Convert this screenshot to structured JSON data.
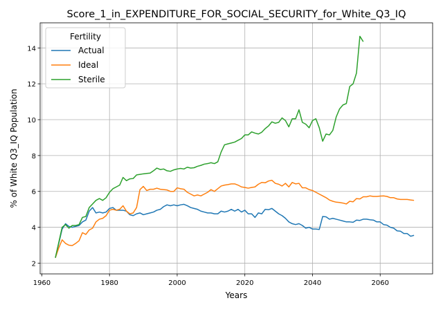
{
  "chart_data": {
    "type": "line",
    "title": "Score_1_in_EXPENDITURE_FOR_SOCIAL_SECURITY_for_White_Q3_IQ",
    "xlabel": "Years",
    "ylabel": "% of White Q3_IQ Population",
    "xlim": [
      1959.5,
      2075.5
    ],
    "ylim": [
      1.4,
      15.4
    ],
    "xticks": [
      1960,
      1980,
      2000,
      2020,
      2040,
      2060
    ],
    "yticks": [
      2,
      4,
      6,
      8,
      10,
      12,
      14
    ],
    "grid": true,
    "legend": {
      "title": "Fertility",
      "placement": "top-left"
    },
    "series": [
      {
        "name": "Actual",
        "color": "#1f77b4",
        "points": [
          [
            1964,
            2.3
          ],
          [
            1966,
            3.9
          ],
          [
            1967,
            4.2
          ],
          [
            1968,
            4.05
          ],
          [
            1969,
            4.0
          ],
          [
            1970,
            4.05
          ],
          [
            1971,
            4.1
          ],
          [
            1972,
            4.3
          ],
          [
            1973,
            4.4
          ],
          [
            1974,
            4.9
          ],
          [
            1975,
            5.1
          ],
          [
            1976,
            4.8
          ],
          [
            1977,
            4.85
          ],
          [
            1978,
            4.8
          ],
          [
            1979,
            4.85
          ],
          [
            1980,
            5.05
          ],
          [
            1981,
            5.1
          ],
          [
            1982,
            4.95
          ],
          [
            1983,
            4.95
          ],
          [
            1984,
            4.95
          ],
          [
            1985,
            4.9
          ],
          [
            1986,
            4.7
          ],
          [
            1987,
            4.65
          ],
          [
            1988,
            4.75
          ],
          [
            1989,
            4.8
          ],
          [
            1990,
            4.7
          ],
          [
            1991,
            4.75
          ],
          [
            1992,
            4.8
          ],
          [
            1993,
            4.85
          ],
          [
            1994,
            4.95
          ],
          [
            1995,
            5.0
          ],
          [
            1996,
            5.15
          ],
          [
            1997,
            5.25
          ],
          [
            1998,
            5.2
          ],
          [
            1999,
            5.25
          ],
          [
            2000,
            5.2
          ],
          [
            2001,
            5.25
          ],
          [
            2002,
            5.28
          ],
          [
            2003,
            5.2
          ],
          [
            2004,
            5.1
          ],
          [
            2005,
            5.05
          ],
          [
            2006,
            5.0
          ],
          [
            2007,
            4.9
          ],
          [
            2008,
            4.85
          ],
          [
            2009,
            4.8
          ],
          [
            2010,
            4.8
          ],
          [
            2011,
            4.75
          ],
          [
            2012,
            4.75
          ],
          [
            2013,
            4.9
          ],
          [
            2014,
            4.85
          ],
          [
            2015,
            4.9
          ],
          [
            2016,
            5.0
          ],
          [
            2017,
            4.9
          ],
          [
            2018,
            5.0
          ],
          [
            2019,
            4.85
          ],
          [
            2020,
            4.95
          ],
          [
            2021,
            4.75
          ],
          [
            2022,
            4.75
          ],
          [
            2023,
            4.55
          ],
          [
            2024,
            4.8
          ],
          [
            2025,
            4.75
          ],
          [
            2026,
            5.0
          ],
          [
            2027,
            4.98
          ],
          [
            2028,
            5.05
          ],
          [
            2029,
            4.9
          ],
          [
            2030,
            4.75
          ],
          [
            2031,
            4.65
          ],
          [
            2032,
            4.5
          ],
          [
            2033,
            4.3
          ],
          [
            2034,
            4.2
          ],
          [
            2035,
            4.15
          ],
          [
            2036,
            4.2
          ],
          [
            2037,
            4.1
          ],
          [
            2038,
            3.95
          ],
          [
            2039,
            4.0
          ],
          [
            2040,
            3.9
          ],
          [
            2041,
            3.9
          ],
          [
            2042,
            3.88
          ],
          [
            2043,
            4.6
          ],
          [
            2044,
            4.58
          ],
          [
            2045,
            4.45
          ],
          [
            2046,
            4.5
          ],
          [
            2047,
            4.45
          ],
          [
            2048,
            4.4
          ],
          [
            2049,
            4.35
          ],
          [
            2050,
            4.3
          ],
          [
            2051,
            4.3
          ],
          [
            2052,
            4.28
          ],
          [
            2053,
            4.4
          ],
          [
            2054,
            4.38
          ],
          [
            2055,
            4.45
          ],
          [
            2056,
            4.45
          ],
          [
            2057,
            4.42
          ],
          [
            2058,
            4.4
          ],
          [
            2059,
            4.3
          ],
          [
            2060,
            4.3
          ],
          [
            2061,
            4.15
          ],
          [
            2062,
            4.12
          ],
          [
            2063,
            4.0
          ],
          [
            2064,
            3.95
          ],
          [
            2065,
            3.8
          ],
          [
            2066,
            3.78
          ],
          [
            2067,
            3.65
          ],
          [
            2068,
            3.65
          ],
          [
            2069,
            3.5
          ],
          [
            2070,
            3.55
          ]
        ]
      },
      {
        "name": "Ideal",
        "color": "#ff7f0e",
        "points": [
          [
            1964,
            2.3
          ],
          [
            1965,
            2.85
          ],
          [
            1966,
            3.3
          ],
          [
            1967,
            3.1
          ],
          [
            1968,
            3.0
          ],
          [
            1969,
            2.98
          ],
          [
            1970,
            3.1
          ],
          [
            1971,
            3.25
          ],
          [
            1972,
            3.7
          ],
          [
            1973,
            3.6
          ],
          [
            1974,
            3.85
          ],
          [
            1975,
            3.95
          ],
          [
            1976,
            4.3
          ],
          [
            1977,
            4.45
          ],
          [
            1978,
            4.5
          ],
          [
            1979,
            4.65
          ],
          [
            1980,
            4.95
          ],
          [
            1981,
            5.0
          ],
          [
            1982,
            4.95
          ],
          [
            1983,
            5.0
          ],
          [
            1984,
            5.2
          ],
          [
            1985,
            4.9
          ],
          [
            1986,
            4.75
          ],
          [
            1987,
            4.8
          ],
          [
            1988,
            5.1
          ],
          [
            1989,
            6.1
          ],
          [
            1990,
            6.28
          ],
          [
            1991,
            6.05
          ],
          [
            1992,
            6.12
          ],
          [
            1993,
            6.12
          ],
          [
            1994,
            6.18
          ],
          [
            1995,
            6.12
          ],
          [
            1996,
            6.1
          ],
          [
            1997,
            6.08
          ],
          [
            1998,
            6.0
          ],
          [
            1999,
            6.0
          ],
          [
            2000,
            6.2
          ],
          [
            2001,
            6.15
          ],
          [
            2002,
            6.12
          ],
          [
            2003,
            5.95
          ],
          [
            2004,
            5.85
          ],
          [
            2005,
            5.75
          ],
          [
            2006,
            5.8
          ],
          [
            2007,
            5.75
          ],
          [
            2008,
            5.85
          ],
          [
            2009,
            5.95
          ],
          [
            2010,
            6.1
          ],
          [
            2011,
            6.0
          ],
          [
            2012,
            6.15
          ],
          [
            2013,
            6.3
          ],
          [
            2014,
            6.35
          ],
          [
            2015,
            6.38
          ],
          [
            2016,
            6.42
          ],
          [
            2017,
            6.42
          ],
          [
            2018,
            6.35
          ],
          [
            2019,
            6.25
          ],
          [
            2020,
            6.22
          ],
          [
            2021,
            6.18
          ],
          [
            2022,
            6.22
          ],
          [
            2023,
            6.25
          ],
          [
            2024,
            6.4
          ],
          [
            2025,
            6.5
          ],
          [
            2026,
            6.48
          ],
          [
            2027,
            6.58
          ],
          [
            2028,
            6.62
          ],
          [
            2029,
            6.45
          ],
          [
            2030,
            6.4
          ],
          [
            2031,
            6.3
          ],
          [
            2032,
            6.45
          ],
          [
            2033,
            6.25
          ],
          [
            2034,
            6.5
          ],
          [
            2035,
            6.42
          ],
          [
            2036,
            6.45
          ],
          [
            2037,
            6.2
          ],
          [
            2038,
            6.2
          ],
          [
            2039,
            6.1
          ],
          [
            2040,
            6.05
          ],
          [
            2041,
            5.95
          ],
          [
            2042,
            5.85
          ],
          [
            2043,
            5.75
          ],
          [
            2044,
            5.65
          ],
          [
            2045,
            5.52
          ],
          [
            2046,
            5.45
          ],
          [
            2047,
            5.4
          ],
          [
            2048,
            5.38
          ],
          [
            2049,
            5.35
          ],
          [
            2050,
            5.3
          ],
          [
            2051,
            5.45
          ],
          [
            2052,
            5.42
          ],
          [
            2053,
            5.6
          ],
          [
            2054,
            5.58
          ],
          [
            2055,
            5.7
          ],
          [
            2056,
            5.7
          ],
          [
            2057,
            5.75
          ],
          [
            2058,
            5.72
          ],
          [
            2059,
            5.72
          ],
          [
            2060,
            5.74
          ],
          [
            2061,
            5.75
          ],
          [
            2062,
            5.72
          ],
          [
            2063,
            5.65
          ],
          [
            2064,
            5.65
          ],
          [
            2065,
            5.58
          ],
          [
            2066,
            5.55
          ],
          [
            2067,
            5.55
          ],
          [
            2068,
            5.55
          ],
          [
            2069,
            5.52
          ],
          [
            2070,
            5.5
          ]
        ]
      },
      {
        "name": "Sterile",
        "color": "#2ca02c",
        "points": [
          [
            1964,
            2.3
          ],
          [
            1966,
            4.0
          ],
          [
            1967,
            4.15
          ],
          [
            1968,
            3.95
          ],
          [
            1969,
            4.1
          ],
          [
            1970,
            4.1
          ],
          [
            1971,
            4.15
          ],
          [
            1972,
            4.55
          ],
          [
            1973,
            4.6
          ],
          [
            1974,
            5.1
          ],
          [
            1975,
            5.3
          ],
          [
            1976,
            5.5
          ],
          [
            1977,
            5.6
          ],
          [
            1978,
            5.5
          ],
          [
            1979,
            5.65
          ],
          [
            1980,
            5.95
          ],
          [
            1981,
            6.15
          ],
          [
            1982,
            6.25
          ],
          [
            1983,
            6.35
          ],
          [
            1984,
            6.78
          ],
          [
            1985,
            6.6
          ],
          [
            1986,
            6.7
          ],
          [
            1987,
            6.72
          ],
          [
            1988,
            6.92
          ],
          [
            1989,
            6.95
          ],
          [
            1990,
            6.98
          ],
          [
            1991,
            7.0
          ],
          [
            1992,
            7.02
          ],
          [
            1993,
            7.15
          ],
          [
            1994,
            7.3
          ],
          [
            1995,
            7.22
          ],
          [
            1996,
            7.25
          ],
          [
            1997,
            7.15
          ],
          [
            1998,
            7.12
          ],
          [
            1999,
            7.2
          ],
          [
            2000,
            7.25
          ],
          [
            2001,
            7.28
          ],
          [
            2002,
            7.25
          ],
          [
            2003,
            7.35
          ],
          [
            2004,
            7.3
          ],
          [
            2005,
            7.32
          ],
          [
            2006,
            7.4
          ],
          [
            2007,
            7.45
          ],
          [
            2008,
            7.52
          ],
          [
            2009,
            7.55
          ],
          [
            2010,
            7.6
          ],
          [
            2011,
            7.55
          ],
          [
            2012,
            7.65
          ],
          [
            2013,
            8.2
          ],
          [
            2014,
            8.6
          ],
          [
            2015,
            8.65
          ],
          [
            2016,
            8.7
          ],
          [
            2017,
            8.75
          ],
          [
            2018,
            8.85
          ],
          [
            2019,
            8.95
          ],
          [
            2020,
            9.15
          ],
          [
            2021,
            9.15
          ],
          [
            2022,
            9.32
          ],
          [
            2023,
            9.25
          ],
          [
            2024,
            9.2
          ],
          [
            2025,
            9.3
          ],
          [
            2026,
            9.5
          ],
          [
            2027,
            9.65
          ],
          [
            2028,
            9.88
          ],
          [
            2029,
            9.8
          ],
          [
            2030,
            9.85
          ],
          [
            2031,
            10.1
          ],
          [
            2032,
            9.95
          ],
          [
            2033,
            9.6
          ],
          [
            2034,
            10.05
          ],
          [
            2035,
            10.05
          ],
          [
            2036,
            10.55
          ],
          [
            2037,
            9.85
          ],
          [
            2038,
            9.75
          ],
          [
            2039,
            9.55
          ],
          [
            2040,
            9.95
          ],
          [
            2041,
            10.05
          ],
          [
            2042,
            9.55
          ],
          [
            2043,
            8.8
          ],
          [
            2044,
            9.2
          ],
          [
            2045,
            9.15
          ],
          [
            2046,
            9.4
          ],
          [
            2047,
            10.15
          ],
          [
            2048,
            10.6
          ],
          [
            2049,
            10.82
          ],
          [
            2050,
            10.9
          ],
          [
            2051,
            11.85
          ],
          [
            2052,
            12.0
          ],
          [
            2053,
            12.6
          ],
          [
            2054,
            14.65
          ],
          [
            2055,
            14.35
          ]
        ]
      }
    ]
  }
}
